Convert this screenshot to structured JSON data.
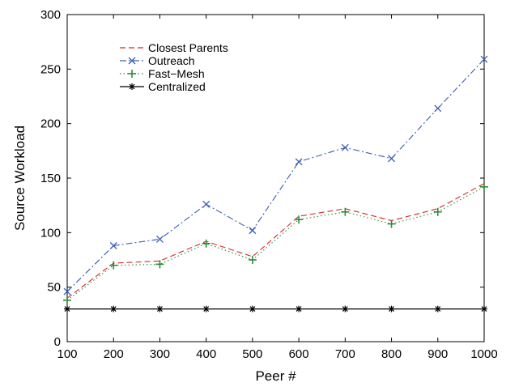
{
  "chart_data": {
    "type": "line",
    "title": "",
    "xlabel": "Peer #",
    "ylabel": "Source Workload",
    "xlim": [
      100,
      1000
    ],
    "ylim": [
      0,
      300
    ],
    "x_ticks": [
      100,
      200,
      300,
      400,
      500,
      600,
      700,
      800,
      900,
      1000
    ],
    "y_ticks": [
      0,
      50,
      100,
      150,
      200,
      250,
      300
    ],
    "grid": false,
    "legend_position": "top-left",
    "x": [
      100,
      200,
      300,
      400,
      500,
      600,
      700,
      800,
      900,
      1000
    ],
    "series": [
      {
        "name": "Closest Parents",
        "color": "#d62728",
        "line_style": "dashed",
        "marker": "none",
        "values": [
          40,
          72,
          74,
          92,
          78,
          115,
          122,
          111,
          122,
          145
        ]
      },
      {
        "name": "Outreach",
        "color": "#3a5fb3",
        "line_style": "dashdot",
        "marker": "x",
        "values": [
          46,
          88,
          94,
          126,
          102,
          165,
          178,
          168,
          214,
          259
        ]
      },
      {
        "name": "Fast−Mesh",
        "color": "#2e8b3d",
        "line_style": "dotted",
        "marker": "plus",
        "values": [
          38,
          70,
          71,
          90,
          75,
          112,
          119,
          108,
          119,
          142
        ]
      },
      {
        "name": "Centralized",
        "color": "#000000",
        "line_style": "solid",
        "marker": "star",
        "values": [
          30,
          30,
          30,
          30,
          30,
          30,
          30,
          30,
          30,
          30
        ]
      }
    ]
  }
}
